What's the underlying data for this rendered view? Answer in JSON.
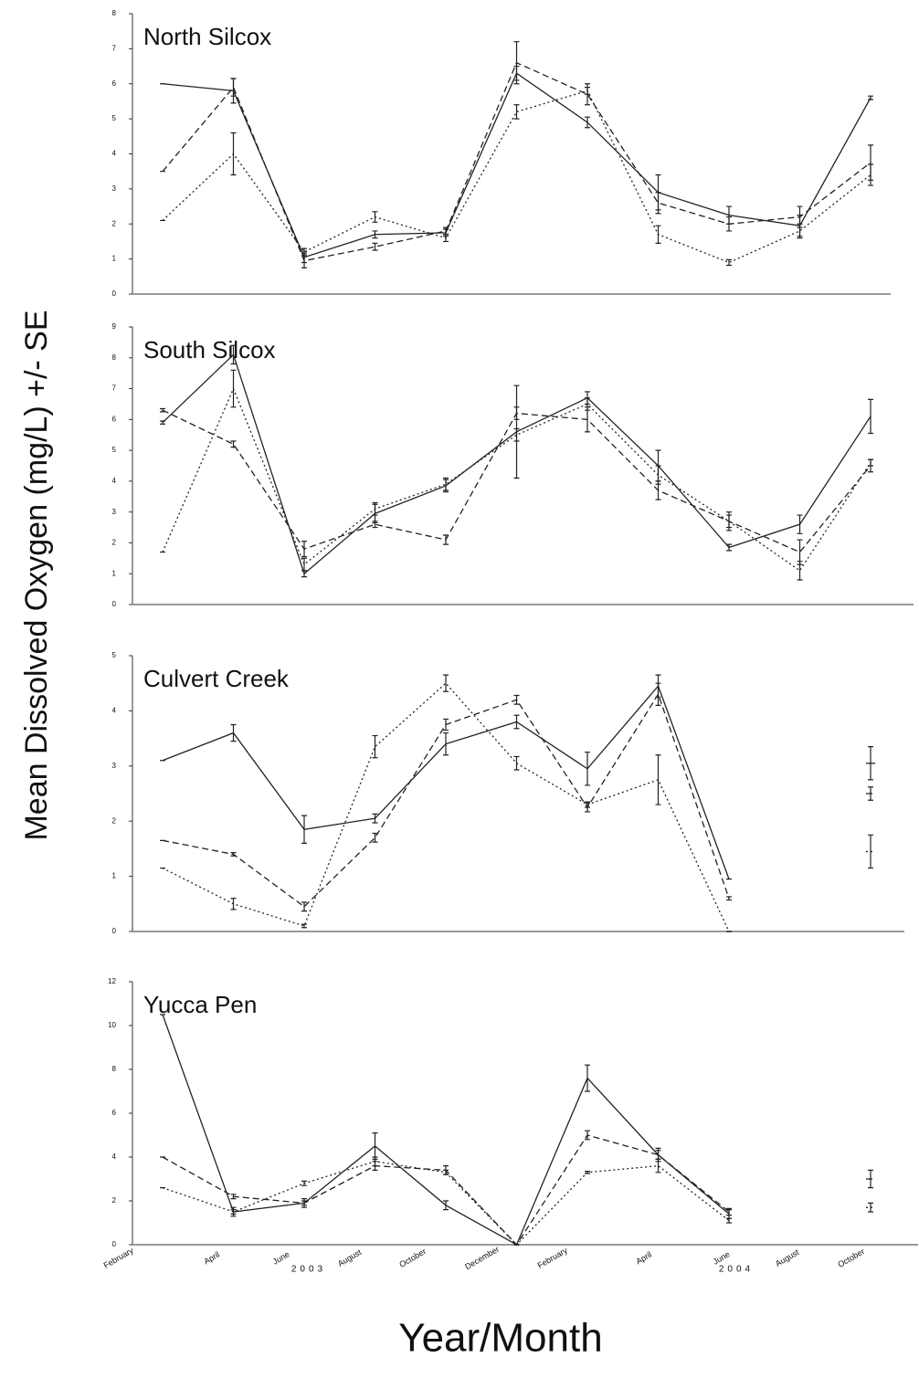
{
  "chart_data": [
    {
      "type": "line",
      "title": "North Silcox",
      "ylim": [
        0,
        8
      ],
      "yticks": [
        0,
        1,
        2,
        3,
        4,
        5,
        6,
        7,
        8
      ],
      "categories": [
        null,
        null,
        null,
        null,
        null,
        null,
        null,
        null,
        null,
        null,
        null
      ],
      "series": [
        {
          "style": "solid",
          "color": "#222222",
          "values": [
            6.0,
            5.8,
            1.05,
            1.7,
            1.75,
            6.3,
            4.9,
            2.9,
            2.25,
            1.95,
            5.6
          ],
          "errors": [
            0,
            0.35,
            0.15,
            0.1,
            0.1,
            0.2,
            0.15,
            0.5,
            0.25,
            0.3,
            0.05
          ]
        },
        {
          "style": "dashed",
          "color": "#222222",
          "values": [
            3.5,
            5.9,
            0.95,
            1.35,
            1.8,
            6.6,
            5.7,
            2.6,
            2.0,
            2.2,
            3.75
          ],
          "errors": [
            0,
            0.25,
            0.2,
            0.1,
            0.1,
            0.6,
            0.3,
            0.3,
            0.2,
            0.3,
            0.5
          ]
        },
        {
          "style": "dotted",
          "color": "#222222",
          "values": [
            2.1,
            4.0,
            1.2,
            2.2,
            1.6,
            5.2,
            5.8,
            1.7,
            0.9,
            1.8,
            3.4
          ],
          "errors": [
            0,
            0.6,
            0.1,
            0.15,
            0.1,
            0.2,
            0.1,
            0.25,
            0.08,
            0.2,
            0.3
          ]
        }
      ]
    },
    {
      "type": "line",
      "title": "South Silcox",
      "ylim": [
        0,
        9
      ],
      "yticks": [
        0,
        1,
        2,
        3,
        4,
        5,
        6,
        7,
        8,
        9
      ],
      "categories": [
        null,
        null,
        null,
        null,
        null,
        null,
        null,
        null,
        null,
        null,
        null
      ],
      "series": [
        {
          "style": "solid",
          "color": "#222222",
          "values": [
            5.9,
            8.1,
            1.0,
            2.95,
            3.85,
            5.6,
            6.7,
            4.5,
            1.85,
            2.6,
            6.1
          ],
          "errors": [
            0.05,
            0.3,
            0.1,
            0.3,
            0.2,
            1.5,
            0.2,
            0.5,
            0.1,
            0.3,
            0.55
          ]
        },
        {
          "style": "dashed",
          "color": "#222222",
          "values": [
            6.3,
            5.2,
            1.8,
            2.6,
            2.1,
            6.2,
            6.0,
            3.7,
            2.7,
            1.7,
            4.5
          ],
          "errors": [
            0.05,
            0.1,
            0.25,
            0.1,
            0.15,
            0.2,
            0.4,
            0.3,
            0.3,
            0.4,
            0.2
          ]
        },
        {
          "style": "dotted",
          "color": "#222222",
          "values": [
            1.7,
            7.0,
            1.3,
            3.1,
            3.9,
            5.5,
            6.5,
            4.2,
            2.7,
            1.1,
            4.6
          ],
          "errors": [
            0,
            0.6,
            0.2,
            0.2,
            0.2,
            0.2,
            0.2,
            0.3,
            0.2,
            0.3,
            0.1
          ]
        }
      ]
    },
    {
      "type": "line",
      "title": "Culvert Creek",
      "ylim": [
        0,
        5
      ],
      "yticks": [
        0,
        1,
        2,
        3,
        4,
        5
      ],
      "categories": [
        null,
        null,
        null,
        null,
        null,
        null,
        null,
        null,
        null,
        null,
        null
      ],
      "series": [
        {
          "style": "solid",
          "color": "#222222",
          "values": [
            3.1,
            3.6,
            1.85,
            2.05,
            3.4,
            3.8,
            2.95,
            4.45,
            0.95,
            null,
            3.05
          ],
          "errors": [
            0,
            0.15,
            0.25,
            0.08,
            0.2,
            0.12,
            0.3,
            0.2,
            0,
            null,
            0.3
          ]
        },
        {
          "style": "dashed",
          "color": "#222222",
          "values": [
            1.65,
            1.4,
            0.45,
            1.7,
            3.75,
            4.2,
            2.25,
            4.3,
            0.6,
            null,
            2.5
          ],
          "errors": [
            0,
            0.03,
            0.08,
            0.08,
            0.1,
            0.08,
            0.08,
            0.2,
            0.03,
            null,
            0.12
          ]
        },
        {
          "style": "dotted",
          "color": "#222222",
          "values": [
            1.15,
            0.5,
            0.1,
            3.35,
            4.5,
            3.05,
            2.3,
            2.75,
            0,
            null,
            1.45
          ],
          "errors": [
            0,
            0.1,
            0.03,
            0.2,
            0.15,
            0.12,
            0.05,
            0.45,
            0,
            null,
            0.3
          ]
        }
      ]
    },
    {
      "type": "line",
      "title": "Yucca Pen",
      "ylim": [
        0,
        12
      ],
      "yticks": [
        0,
        2,
        4,
        6,
        8,
        10,
        12
      ],
      "categories": [
        null,
        null,
        null,
        null,
        null,
        null,
        null,
        null,
        null,
        null,
        null
      ],
      "series": [
        {
          "style": "solid",
          "color": "#222222",
          "values": [
            10.5,
            1.5,
            1.9,
            4.5,
            1.8,
            0,
            7.6,
            4.1,
            1.4,
            null,
            null
          ],
          "errors": [
            0,
            0.2,
            0.2,
            0.6,
            0.2,
            0,
            0.6,
            0.3,
            0.2,
            null,
            null
          ]
        },
        {
          "style": "dashed",
          "color": "#222222",
          "values": [
            4.0,
            2.2,
            1.9,
            3.6,
            3.4,
            0,
            5.0,
            4.1,
            1.5,
            null,
            3.0
          ],
          "errors": [
            0,
            0.1,
            0.1,
            0.2,
            0.2,
            0,
            0.2,
            0.2,
            0.15,
            null,
            0.4
          ]
        },
        {
          "style": "dotted",
          "color": "#222222",
          "values": [
            2.6,
            1.5,
            2.8,
            3.8,
            3.3,
            0,
            3.3,
            3.6,
            1.1,
            null,
            1.7
          ],
          "errors": [
            0,
            0.1,
            0.1,
            0.2,
            0.1,
            0,
            0.05,
            0.3,
            0.1,
            null,
            0.2
          ]
        }
      ]
    }
  ],
  "shared_axis": {
    "ylabel": "Mean Dissolved Oxygen (mg/L) +/- SE",
    "xlabel": "Year/Month",
    "month_labels": [
      "February",
      "April",
      "June",
      "August",
      "October",
      "December",
      "February",
      "April",
      "June",
      "August",
      "October"
    ],
    "year_labels": [
      "2003",
      "2004"
    ]
  }
}
